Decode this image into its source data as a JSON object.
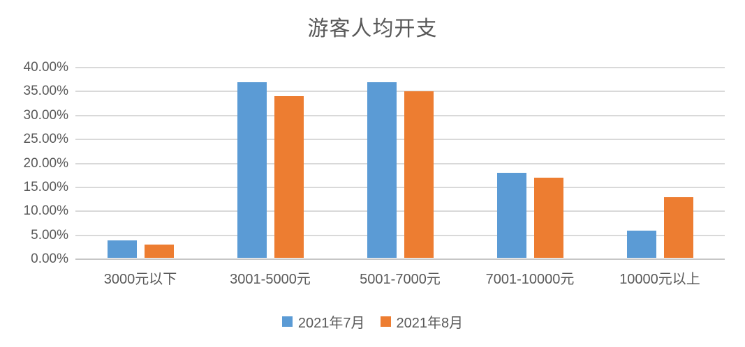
{
  "chart_data": {
    "type": "bar",
    "title": "游客人均开支",
    "categories": [
      "3000元以下",
      "3001-5000元",
      "5001-7000元",
      "7001-10000元",
      "10000元以上"
    ],
    "series": [
      {
        "name": "2021年7月",
        "color": "#5B9BD5",
        "values": [
          4,
          37,
          37,
          18,
          6
        ]
      },
      {
        "name": "2021年8月",
        "color": "#ED7D31",
        "values": [
          3,
          34,
          35,
          17,
          13
        ]
      }
    ],
    "xlabel": "",
    "ylabel": "",
    "ylim": [
      0,
      40
    ],
    "ytick_step": 5,
    "ytick_labels": [
      "0.00%",
      "5.00%",
      "10.00%",
      "15.00%",
      "20.00%",
      "25.00%",
      "30.00%",
      "35.00%",
      "40.00%"
    ],
    "grid": true,
    "legend_position": "bottom",
    "colors": {
      "gridline": "#d9d9d9",
      "axis_line": "#c6c6c6",
      "text": "#595959",
      "background": "#ffffff"
    }
  }
}
